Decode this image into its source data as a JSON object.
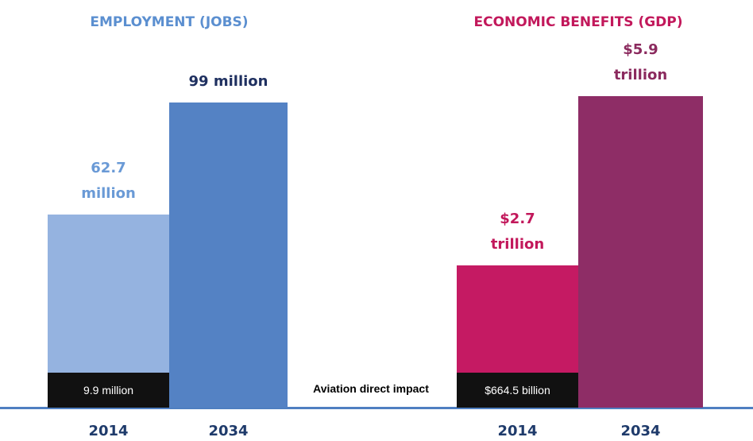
{
  "chart_data": [
    {
      "type": "bar",
      "title": "EMPLOYMENT (JOBS)",
      "title_color": "#5b8fd0",
      "categories": [
        "2014",
        "2034"
      ],
      "values": [
        62.7,
        99
      ],
      "value_labels": [
        "62.7 million",
        "99 million"
      ],
      "colors": [
        "#95b3e0",
        "#5482c4"
      ],
      "label_colors": [
        "#6a9ad6",
        "#1f3060"
      ],
      "direct_impact": 9.9,
      "direct_impact_label": "9.9 million"
    },
    {
      "type": "bar",
      "title": "ECONOMIC BENEFITS (GDP)",
      "title_color": "#c2185b",
      "categories": [
        "2014",
        "2034"
      ],
      "values": [
        2.7,
        5.9
      ],
      "value_labels": [
        "$2.7 trillion",
        "$5.9 trillion"
      ],
      "colors": [
        "#c51a63",
        "#8e2d66"
      ],
      "label_colors": [
        "#c2185b",
        "#8b2a5e"
      ],
      "direct_impact": 0.6645,
      "direct_impact_label": "$664.5 billion"
    }
  ],
  "annotation": "Aviation direct impact"
}
